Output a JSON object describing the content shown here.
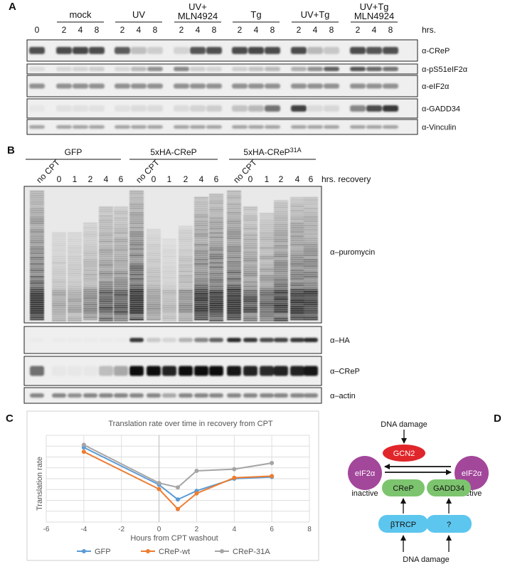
{
  "panels": {
    "A": "A",
    "B": "B",
    "C": "C",
    "D": "D"
  },
  "panelA": {
    "groups": [
      {
        "label": "mock",
        "lanes": [
          "2",
          "4",
          "8"
        ]
      },
      {
        "label": "UV",
        "lanes": [
          "2",
          "4",
          "8"
        ]
      },
      {
        "label": "UV+ MLN4924",
        "lanes": [
          "2",
          "4",
          "8"
        ]
      },
      {
        "label": "Tg",
        "lanes": [
          "2",
          "4",
          "8"
        ]
      },
      {
        "label": "UV+Tg",
        "lanes": [
          "2",
          "4",
          "8"
        ]
      },
      {
        "label": "UV+Tg MLN4924",
        "lanes": [
          "2",
          "4",
          "8"
        ]
      }
    ],
    "zero_lane": "0",
    "time_unit": "hrs.",
    "blots": [
      "α-CReP",
      "α-pS51eIF2α",
      "α-eIF2α",
      "α-GADD34",
      "α-Vinculin"
    ]
  },
  "panelB": {
    "groups": [
      {
        "label": "GFP",
        "lanes": [
          "no CPT",
          "0",
          "1",
          "2",
          "4",
          "6"
        ]
      },
      {
        "label": "5xHA-CReP",
        "lanes": [
          "no CPT",
          "0",
          "1",
          "2",
          "4",
          "6"
        ]
      },
      {
        "label": "5xHA-CReP",
        "label_sup": "31A",
        "lanes": [
          "no CPT",
          "0",
          "1",
          "2",
          "4",
          "6"
        ]
      }
    ],
    "time_unit": "hrs. recovery",
    "blots": [
      "α–puromycin",
      "α–HA",
      "α–CReP",
      "α–actin"
    ]
  },
  "chart_data": {
    "type": "line",
    "title": "Translation rate over time in recovery from CPT",
    "xlabel": "Hours from CPT washout",
    "ylabel": "Translation rate",
    "xlim": [
      -6,
      8
    ],
    "xticks": [
      -6,
      -4,
      -2,
      0,
      2,
      4,
      6,
      8
    ],
    "ylim": [
      0,
      10
    ],
    "grid": true,
    "legend": "bottom",
    "x": [
      -4,
      0,
      1,
      2,
      4,
      6
    ],
    "series": [
      {
        "name": "GFP",
        "color": "#5b9bd5",
        "values": [
          8.6,
          4.3,
          2.6,
          3.6,
          5.0,
          5.2
        ]
      },
      {
        "name": "CReP-wt",
        "color": "#ed7d31",
        "values": [
          8.1,
          3.8,
          1.5,
          3.3,
          5.1,
          5.3
        ]
      },
      {
        "name": "CReP-31A",
        "color": "#a5a5a5",
        "values": [
          8.9,
          4.5,
          4.0,
          5.9,
          6.1,
          6.8
        ]
      }
    ]
  },
  "panelD": {
    "top_label": "DNA damage",
    "bottom_labels": [
      "DNA damage",
      "DNA damage"
    ],
    "gcn2": "GCN2",
    "eif2_left": "eIF2α",
    "eif2_right": "eIF2α",
    "inactive": "inactive",
    "active": "active",
    "crep": "CReP",
    "gadd34": "GADD34",
    "btrcp": "βTRCP",
    "unknown": "?",
    "colors": {
      "purple": "#a3479b",
      "red": "#e0262a",
      "green": "#7dc46f",
      "blue": "#5cc6ee",
      "inactive": "#d9302b",
      "active": "#2e9447"
    }
  }
}
